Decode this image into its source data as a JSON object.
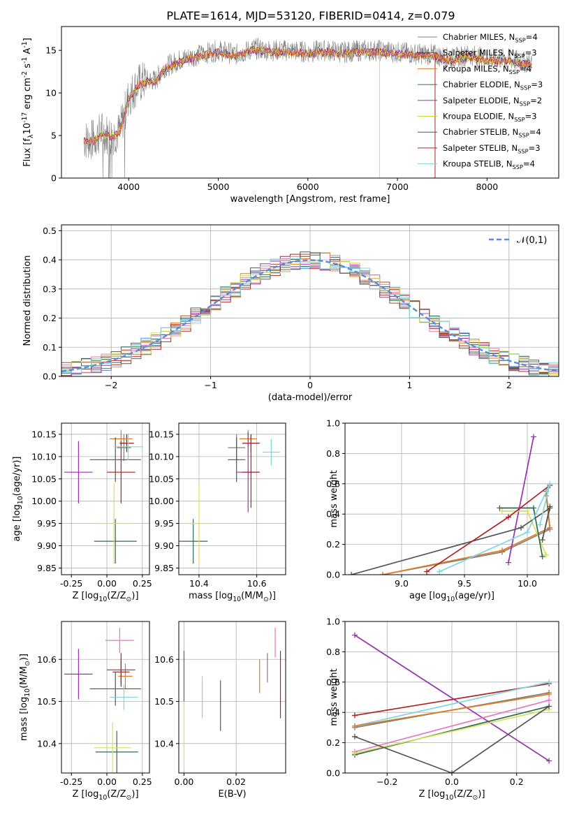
{
  "figure_title": "PLATE=1614, MJD=53120, FIBERID=0414, z=0.079",
  "legend_spectrum": [
    {
      "label": "Chabrier MILES, N$_{SSP}$=4",
      "color": "#7f7f7f"
    },
    {
      "label": "Salpeter MILES, N$_{SSP}$=3",
      "color": "#8b1a1a"
    },
    {
      "label": "Kroupa MILES, N$_{SSP}$=4",
      "color": "#e07b20"
    },
    {
      "label": "Chabrier ELODIE, N$_{SSP}$=3",
      "color": "#2e6b4f"
    },
    {
      "label": "Salpeter ELODIE, N$_{SSP}$=2",
      "color": "#9b30b0"
    },
    {
      "label": "Kroupa ELODIE, N$_{SSP}$=3",
      "color": "#d4d43a"
    },
    {
      "label": "Chabrier STELIB, N$_{SSP}$=4",
      "color": "#555555"
    },
    {
      "label": "Salpeter STELIB, N$_{SSP}$=3",
      "color": "#b22222"
    },
    {
      "label": "Kroupa STELIB, N$_{SSP}$=4",
      "color": "#7fd6e0"
    }
  ],
  "chart_data": [
    {
      "id": "spectrum",
      "type": "line",
      "xlabel": "wavelength [Angstrom, rest frame]",
      "ylabel": "Flux [f$_\\lambda$10$^{-17}$ erg cm$^{-2}$ s$^{-1}$ A$^{-1}$]",
      "xlim": [
        3250,
        8800
      ],
      "ylim": [
        0,
        17.8
      ],
      "xticks": [
        4000,
        5000,
        6000,
        7000,
        8000
      ],
      "yticks": [
        0,
        5,
        10,
        15
      ],
      "grid": false,
      "legend_position": "right",
      "data_continuum": {
        "x": [
          3500,
          3600,
          3700,
          3800,
          3900,
          4000,
          4100,
          4200,
          4300,
          4400,
          4500,
          4600,
          4800,
          5000,
          5200,
          5400,
          5600,
          5800,
          6000,
          6200,
          6400,
          6600,
          6800,
          7000,
          7200,
          7400,
          7600,
          7800,
          8000,
          8200,
          8500
        ],
        "y": [
          4.5,
          4.5,
          5.5,
          5.0,
          5.5,
          9.5,
          11.0,
          11.5,
          11.5,
          13.0,
          13.5,
          14.0,
          14.5,
          15.0,
          14.5,
          15.2,
          15.0,
          15.0,
          14.8,
          15.0,
          14.8,
          15.0,
          15.0,
          14.8,
          14.6,
          14.5,
          14.0,
          14.5,
          14.0,
          14.0,
          13.5
        ]
      },
      "model_dropouts": [
        {
          "series": "Kroupa ELODIE",
          "x": 6800
        },
        {
          "series": "Salpeter STELIB",
          "x": 7420
        }
      ]
    },
    {
      "id": "residuals",
      "type": "histogram",
      "xlabel": "(data-model)/error",
      "ylabel": "Normed distribution",
      "xlim": [
        -2.5,
        2.5
      ],
      "ylim": [
        0,
        0.52
      ],
      "xticks": [
        -2,
        -1,
        0,
        1,
        2
      ],
      "yticks": [
        0.0,
        0.1,
        0.2,
        0.3,
        0.4,
        0.5
      ],
      "grid": true,
      "legend": "$\\mathcal{N}(0,1)$",
      "legend_position": "top-right",
      "bin_width": 0.1
    },
    {
      "id": "age_vs_Z",
      "type": "scatter",
      "xlabel": "Z [log$_{10}$($Z/Z_\\odot$)]",
      "ylabel": "age  [log$_{10}$($age/yr$)]",
      "xlim": [
        -0.32,
        0.3
      ],
      "ylim": [
        9.835,
        10.175
      ],
      "xticks": [
        -0.25,
        0.0,
        0.25
      ],
      "yticks": [
        9.85,
        9.9,
        9.95,
        10.0,
        10.05,
        10.1,
        10.15
      ],
      "grid": true,
      "points": [
        {
          "series": "Chabrier MILES",
          "x": 0.12,
          "y": 10.12,
          "xerr": 0.05,
          "yerr": 0.03
        },
        {
          "series": "Salpeter MILES",
          "x": 0.14,
          "y": 10.13,
          "xerr": 0.05,
          "yerr": 0.02
        },
        {
          "series": "Kroupa MILES",
          "x": 0.1,
          "y": 10.14,
          "xerr": 0.08,
          "yerr": 0.02
        },
        {
          "series": "Chabrier ELODIE",
          "x": 0.06,
          "y": 9.91,
          "xerr": 0.15,
          "yerr": 0.05
        },
        {
          "series": "Salpeter ELODIE",
          "x": -0.2,
          "y": 10.065,
          "xerr": 0.1,
          "yerr": 0.07
        },
        {
          "series": "Kroupa ELODIE",
          "x": 0.05,
          "y": 9.95,
          "xerr": 0.13,
          "yerr": 0.09
        },
        {
          "series": "Chabrier STELIB",
          "x": 0.06,
          "y": 10.093,
          "xerr": 0.18,
          "yerr": 0.05
        },
        {
          "series": "Salpeter STELIB",
          "x": 0.1,
          "y": 10.065,
          "xerr": 0.1,
          "yerr": 0.07
        },
        {
          "series": "Kroupa STELIB",
          "x": 0.15,
          "y": 10.122,
          "xerr": 0.1,
          "yerr": 0.03
        }
      ]
    },
    {
      "id": "age_vs_mass",
      "type": "scatter",
      "xlabel": "mass [log$_{10}$($M/M_\\odot$)]",
      "ylabel": "",
      "xlim": [
        10.33,
        10.7
      ],
      "ylim": [
        9.835,
        10.175
      ],
      "xticks": [
        10.4,
        10.6
      ],
      "yticks": [
        9.85,
        9.9,
        9.95,
        10.0,
        10.05,
        10.1,
        10.15
      ],
      "grid": true,
      "points": [
        {
          "series": "Chabrier MILES",
          "x": 10.53,
          "y": 10.12,
          "xerr": 0.03,
          "yerr": 0.03
        },
        {
          "series": "Salpeter MILES",
          "x": 10.58,
          "y": 10.13,
          "xerr": 0.03,
          "yerr": 0.02
        },
        {
          "series": "Kroupa MILES",
          "x": 10.57,
          "y": 10.14,
          "xerr": 0.03,
          "yerr": 0.02
        },
        {
          "series": "Chabrier ELODIE",
          "x": 10.38,
          "y": 9.91,
          "xerr": 0.05,
          "yerr": 0.05
        },
        {
          "series": "Salpeter ELODIE",
          "x": 10.57,
          "y": 10.065,
          "xerr": 0.04,
          "yerr": 0.09
        },
        {
          "series": "Kroupa ELODIE",
          "x": 10.4,
          "y": 9.95,
          "xerr": 0.05,
          "yerr": 0.09
        },
        {
          "series": "Chabrier STELIB",
          "x": 10.53,
          "y": 10.093,
          "xerr": 0.03,
          "yerr": 0.05
        },
        {
          "series": "Salpeter STELIB",
          "x": 10.58,
          "y": 10.065,
          "xerr": 0.03,
          "yerr": 0.08
        },
        {
          "series": "Kroupa STELIB",
          "x": 10.65,
          "y": 10.11,
          "xerr": 0.03,
          "yerr": 0.03
        }
      ]
    },
    {
      "id": "weight_vs_age",
      "type": "line",
      "xlabel": "age  [log$_{10}$($age/yr$)]",
      "ylabel": "mass weight",
      "xlim": [
        8.55,
        10.25
      ],
      "ylim": [
        0,
        1.0
      ],
      "xticks": [
        9.0,
        9.5,
        10.0
      ],
      "yticks": [
        0.0,
        0.2,
        0.4,
        0.6,
        0.8,
        1.0
      ],
      "grid": true,
      "series": [
        {
          "name": "Chabrier MILES",
          "x": [
            8.85,
            9.8,
            10.18,
            10.15
          ],
          "y": [
            0.0,
            0.15,
            0.3,
            0.55
          ]
        },
        {
          "name": "Kroupa MILES",
          "x": [
            8.85,
            9.8,
            10.18,
            10.15
          ],
          "y": [
            0.0,
            0.16,
            0.31,
            0.52
          ]
        },
        {
          "name": "Salpeter ELODIE",
          "x": [
            9.85,
            10.05
          ],
          "y": [
            0.08,
            0.91
          ]
        },
        {
          "name": "Kroupa ELODIE",
          "x": [
            9.8,
            10.0,
            10.15
          ],
          "y": [
            0.42,
            0.42,
            0.13
          ]
        },
        {
          "name": "Chabrier ELODIE",
          "x": [
            9.78,
            10.05,
            10.12
          ],
          "y": [
            0.44,
            0.44,
            0.12
          ]
        },
        {
          "name": "Chabrier STELIB",
          "x": [
            8.6,
            9.95,
            10.18,
            10.12,
            10.18
          ],
          "y": [
            0.0,
            0.31,
            0.44,
            0.23,
            0.45
          ]
        },
        {
          "name": "Salpeter STELIB",
          "x": [
            9.2,
            9.85,
            10.18
          ],
          "y": [
            0.02,
            0.38,
            0.59
          ]
        },
        {
          "name": "Kroupa STELIB",
          "x": [
            9.3,
            10.0,
            10.18,
            10.1
          ],
          "y": [
            0.02,
            0.28,
            0.6,
            0.33
          ]
        }
      ]
    },
    {
      "id": "mass_vs_Z",
      "type": "scatter",
      "xlabel": "Z [log$_{10}$($Z/Z_\\odot$)]",
      "ylabel": "mass [log$_{10}$($M/M_\\odot$)]",
      "xlim": [
        -0.32,
        0.3
      ],
      "ylim": [
        10.33,
        10.69
      ],
      "xticks": [
        -0.25,
        0.0,
        0.25
      ],
      "yticks": [
        10.4,
        10.5,
        10.6
      ],
      "grid": true,
      "points": [
        {
          "series": "Kroupa MILES",
          "x": 0.13,
          "y": 10.56,
          "xerr": 0.05,
          "yerr": 0.03
        },
        {
          "series": "Salpeter MILES",
          "x": 0.1,
          "y": 10.57,
          "xerr": 0.06,
          "yerr": 0.03
        },
        {
          "series": "Chabrier ELODIE",
          "x": 0.07,
          "y": 10.38,
          "xerr": 0.15,
          "yerr": 0.05
        },
        {
          "series": "Salpeter ELODIE",
          "x": -0.2,
          "y": 10.565,
          "xerr": 0.1,
          "yerr": 0.06
        },
        {
          "series": "Kroupa ELODIE",
          "x": 0.04,
          "y": 10.39,
          "xerr": 0.13,
          "yerr": 0.06
        },
        {
          "series": "Chabrier STELIB",
          "x": 0.06,
          "y": 10.53,
          "xerr": 0.18,
          "yerr": 0.04
        },
        {
          "series": "Salpeter STELIB",
          "x": 0.1,
          "y": 10.575,
          "xerr": 0.1,
          "yerr": 0.04
        },
        {
          "series": "Kroupa STELIB",
          "x": 0.12,
          "y": 10.51,
          "xerr": 0.1,
          "yerr": 0.03
        },
        {
          "series": "Pink",
          "x": 0.09,
          "y": 10.645,
          "xerr": 0.1,
          "yerr": 0.03
        }
      ]
    },
    {
      "id": "mass_vs_EBV",
      "type": "scatter",
      "xlabel": "E(B-V)",
      "ylabel": "",
      "xlim": [
        -0.002,
        0.039
      ],
      "ylim": [
        10.33,
        10.69
      ],
      "xticks": [
        0.0,
        0.02
      ],
      "yticks": [
        10.4,
        10.5,
        10.6
      ],
      "grid": true,
      "points": [
        {
          "series": "Salpeter ELODIE",
          "x": 0.0,
          "y": 10.56,
          "yerr": 0.06
        },
        {
          "series": "Kroupa ELODIE",
          "x": 0.0,
          "y": 10.42,
          "yerr": 0.08
        },
        {
          "series": "Kroupa STELIB",
          "x": 0.007,
          "y": 10.51,
          "yerr": 0.05
        },
        {
          "series": "Chabrier STELIB",
          "x": 0.014,
          "y": 10.49,
          "yerr": 0.06
        },
        {
          "series": "Kroupa MILES",
          "x": 0.029,
          "y": 10.56,
          "yerr": 0.04
        },
        {
          "series": "Chabrier MILES",
          "x": 0.032,
          "y": 10.58,
          "yerr": 0.035
        },
        {
          "series": "Pink",
          "x": 0.035,
          "y": 10.64,
          "yerr": 0.035
        },
        {
          "series": "Salpeter STELIB",
          "x": 0.037,
          "y": 10.54,
          "yerr": 0.08
        }
      ]
    },
    {
      "id": "weight_vs_Z",
      "type": "line",
      "xlabel": "Z [log$_{10}$($Z/Z_\\odot$)]",
      "ylabel": "mass weight",
      "xlim": [
        -0.33,
        0.33
      ],
      "ylim": [
        0,
        1.0
      ],
      "xticks": [
        -0.2,
        0.0,
        0.2
      ],
      "yticks": [
        0.0,
        0.2,
        0.4,
        0.6,
        0.8,
        1.0
      ],
      "grid": true,
      "series": [
        {
          "name": "Salpeter ELODIE",
          "x": [
            -0.3,
            0.3
          ],
          "y": [
            0.91,
            0.08
          ]
        },
        {
          "name": "Salpeter STELIB",
          "x": [
            -0.3,
            0.3
          ],
          "y": [
            0.38,
            0.59
          ]
        },
        {
          "name": "Kroupa STELIB",
          "x": [
            -0.3,
            0.3
          ],
          "y": [
            0.31,
            0.6
          ]
        },
        {
          "name": "Chabrier MILES",
          "x": [
            -0.3,
            0.3
          ],
          "y": [
            0.3,
            0.53
          ]
        },
        {
          "name": "Kroupa MILES",
          "x": [
            -0.3,
            0.3
          ],
          "y": [
            0.31,
            0.52
          ]
        },
        {
          "name": "Pink",
          "x": [
            -0.3,
            0.3
          ],
          "y": [
            0.14,
            0.48
          ]
        },
        {
          "name": "Chabrier ELODIE",
          "x": [
            -0.3,
            0.3
          ],
          "y": [
            0.12,
            0.44
          ]
        },
        {
          "name": "Kroupa ELODIE",
          "x": [
            -0.3,
            0.3
          ],
          "y": [
            0.13,
            0.42
          ]
        },
        {
          "name": "Chabrier STELIB",
          "x": [
            -0.3,
            0.0,
            0.3
          ],
          "y": [
            0.24,
            0.0,
            0.44
          ]
        }
      ]
    }
  ],
  "colors": {
    "Chabrier MILES": "#7f7f7f",
    "Salpeter MILES": "#8b1a1a",
    "Kroupa MILES": "#e07b20",
    "Chabrier ELODIE": "#2e6b4f",
    "Salpeter ELODIE": "#9b30b0",
    "Kroupa ELODIE": "#d4e157",
    "Chabrier STELIB": "#555555",
    "Salpeter STELIB": "#b22222",
    "Kroupa STELIB": "#7fd6e0",
    "Pink": "#e377c2",
    "Blue": "#5b8bd9",
    "data": "#808080",
    "normal": "#5b8bd9"
  }
}
